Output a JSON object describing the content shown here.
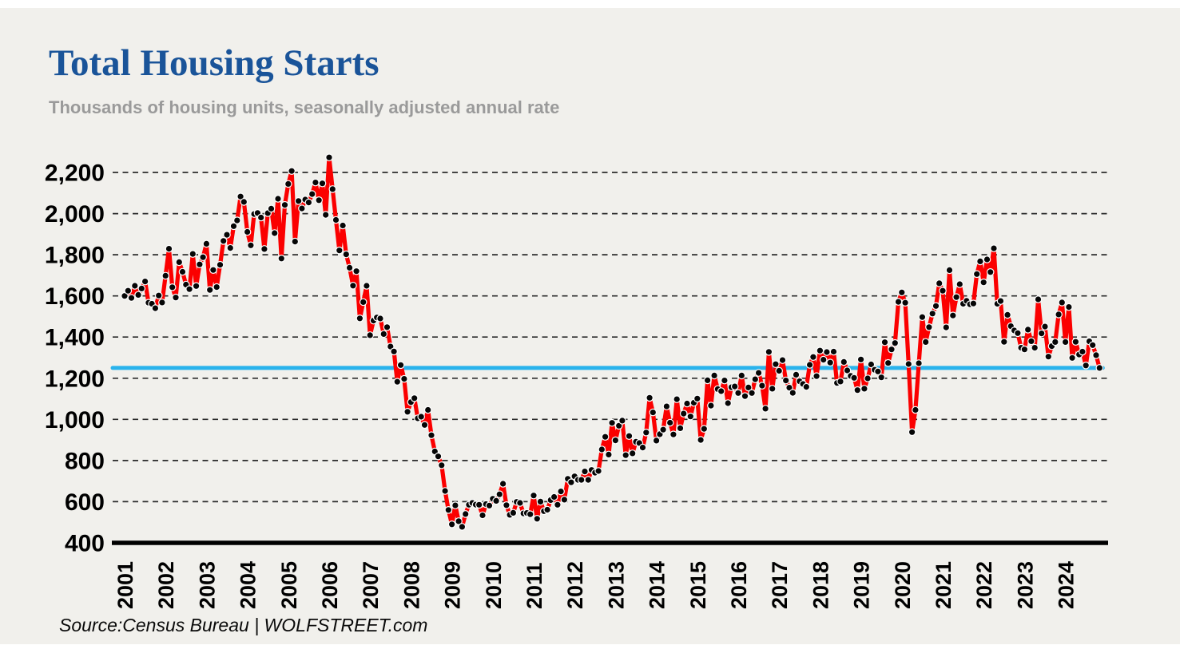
{
  "colors": {
    "page_background": "#ffffff",
    "card_background": "#f1f0ec",
    "title_blue": "#1a5499",
    "subtitle_gray": "#9a9a9a",
    "line_red": "#fb0000",
    "marker_black": "#060606",
    "marker_outline_white": "#ffffff",
    "reference_blue": "#2ab3ec",
    "gridline": "#2b2b2b",
    "axis_black": "#000000"
  },
  "header": {
    "title": "Total Housing Starts",
    "subtitle": "Thousands of housing units, seasonally adjusted annual rate"
  },
  "footer": {
    "source": "Source:Census Bureau | WOLFSTREET.com"
  },
  "chart_data": {
    "type": "line",
    "title": "Total Housing Starts",
    "subtitle": "Thousands of housing units, seasonally adjusted annual rate",
    "x_start": "2001-01",
    "x_end": "2024-11",
    "x_frequency": "monthly",
    "x_year_ticks": [
      2001,
      2002,
      2003,
      2004,
      2005,
      2006,
      2007,
      2008,
      2009,
      2010,
      2011,
      2012,
      2013,
      2014,
      2015,
      2016,
      2017,
      2018,
      2019,
      2020,
      2021,
      2022,
      2023,
      2024
    ],
    "y_ticks": [
      400,
      600,
      800,
      1000,
      1200,
      1400,
      1600,
      1800,
      2000,
      2200
    ],
    "ylim": [
      400,
      2320
    ],
    "grid": "horizontal-dashed",
    "legend": "none",
    "reference_line": {
      "value": 1250,
      "color": "#2ab3ec"
    },
    "series": [
      {
        "name": "Total housing starts, thousands of units SAAR",
        "color": "#fb0000",
        "marker": {
          "shape": "circle",
          "fill": "#060606",
          "outline": "#ffffff"
        },
        "values": [
          1600,
          1625,
          1590,
          1649,
          1605,
          1636,
          1670,
          1567,
          1562,
          1540,
          1602,
          1568,
          1698,
          1829,
          1642,
          1592,
          1764,
          1717,
          1655,
          1633,
          1804,
          1648,
          1753,
          1788,
          1853,
          1629,
          1726,
          1643,
          1751,
          1867,
          1897,
          1833,
          1939,
          1967,
          2083,
          2057,
          1911,
          1846,
          1998,
          2003,
          1981,
          1828,
          2002,
          2024,
          1905,
          2072,
          1782,
          2042,
          2144,
          2207,
          1864,
          2061,
          2025,
          2068,
          2054,
          2095,
          2151,
          2065,
          2147,
          1994,
          2273,
          2119,
          1969,
          1821,
          1942,
          1802,
          1737,
          1650,
          1720,
          1491,
          1570,
          1649,
          1409,
          1480,
          1495,
          1490,
          1415,
          1448,
          1354,
          1330,
          1183,
          1264,
          1197,
          1037,
          1084,
          1103,
          1005,
          1013,
          973,
          1046,
          923,
          844,
          820,
          777,
          652,
          560,
          490,
          582,
          505,
          478,
          540,
          585,
          594,
          586,
          585,
          534,
          588,
          581,
          614,
          604,
          636,
          687,
          583,
          536,
          546,
          599,
          594,
          543,
          545,
          539,
          630,
          517,
          600,
          554,
          561,
          608,
          623,
          585,
          650,
          610,
          711,
          694,
          723,
          706,
          706,
          747,
          706,
          754,
          741,
          749,
          854,
          915,
          829,
          983,
          898,
          969,
          994,
          826,
          919,
          835,
          891,
          885,
          863,
          936,
          1105,
          1034,
          897,
          928,
          950,
          1063,
          984,
          927,
          1098,
          957,
          1028,
          1077,
          1014,
          1081,
          1101,
          900,
          954,
          1190,
          1067,
          1213,
          1147,
          1137,
          1189,
          1079,
          1156,
          1160,
          1128,
          1213,
          1113,
          1155,
          1128,
          1195,
          1226,
          1164,
          1052,
          1328,
          1149,
          1268,
          1236,
          1288,
          1189,
          1154,
          1129,
          1217,
          1185,
          1172,
          1158,
          1265,
          1303,
          1210,
          1334,
          1290,
          1327,
          1276,
          1329,
          1177,
          1184,
          1279,
          1238,
          1211,
          1202,
          1142,
          1291,
          1149,
          1199,
          1267,
          1241,
          1233,
          1204,
          1375,
          1274,
          1340,
          1371,
          1571,
          1617,
          1567,
          1269,
          938,
          1046,
          1273,
          1497,
          1376,
          1448,
          1514,
          1551,
          1661,
          1625,
          1447,
          1725,
          1505,
          1594,
          1657,
          1562,
          1576,
          1559,
          1563,
          1706,
          1768,
          1666,
          1777,
          1716,
          1831,
          1562,
          1575,
          1377,
          1508,
          1453,
          1432,
          1419,
          1348,
          1340,
          1436,
          1380,
          1348,
          1583,
          1418,
          1451,
          1305,
          1356,
          1376,
          1510,
          1568,
          1376,
          1546,
          1299,
          1377,
          1315,
          1329,
          1262,
          1379,
          1361,
          1312,
          1250
        ]
      }
    ]
  }
}
